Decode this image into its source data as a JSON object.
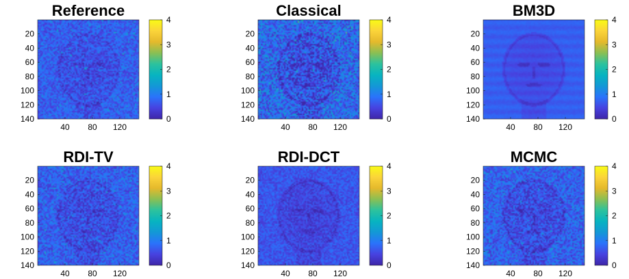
{
  "chart_data": {
    "type": "heatmap",
    "x_ticks": [
      "40",
      "80",
      "120"
    ],
    "y_ticks": [
      "20",
      "40",
      "60",
      "80",
      "100",
      "120",
      "140"
    ],
    "colorbar_ticks": [
      "0",
      "1",
      "2",
      "3",
      "4"
    ],
    "colorbar_range": [
      0,
      4
    ],
    "colormap": [
      "#3e26a8",
      "#4742e0",
      "#2a73fb",
      "#1398d6",
      "#07b4c0",
      "#2cc29d",
      "#8bbf53",
      "#e5b92c",
      "#fbd43a",
      "#f9fb15"
    ],
    "panels": [
      {
        "title": "Reference",
        "style": "noisy",
        "mean_level": 0.72,
        "noise": 0.42,
        "face_dim": 0.18
      },
      {
        "title": "Classical",
        "style": "very-noisy",
        "mean_level": 0.8,
        "noise": 0.62,
        "face_dim": 0.32
      },
      {
        "title": "BM3D",
        "style": "smooth",
        "mean_level": 0.7,
        "noise": 0.12,
        "face_dim": 0.2
      },
      {
        "title": "RDI-TV",
        "style": "noisy",
        "mean_level": 0.72,
        "noise": 0.46,
        "face_dim": 0.22
      },
      {
        "title": "RDI-DCT",
        "style": "moderate",
        "mean_level": 0.62,
        "noise": 0.32,
        "face_dim": 0.2
      },
      {
        "title": "MCMC",
        "style": "noisy",
        "mean_level": 0.74,
        "noise": 0.48,
        "face_dim": 0.24
      }
    ]
  }
}
